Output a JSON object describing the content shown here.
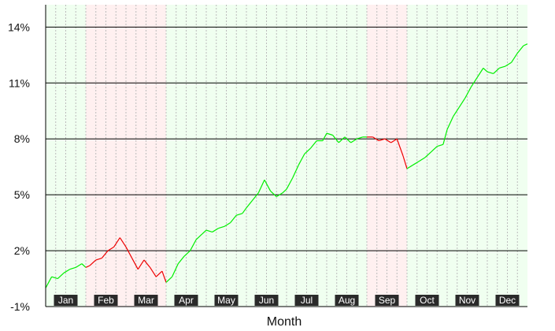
{
  "chart_data": {
    "type": "line",
    "xlabel": "Month",
    "ylabel": "",
    "title": "",
    "ylim": [
      -1,
      15.2
    ],
    "yticks": [
      "-1%",
      "2%",
      "5%",
      "8%",
      "11%",
      "14%"
    ],
    "ytick_values": [
      -1,
      2,
      5,
      8,
      11,
      14
    ],
    "grid": "horizontal solid lines at y ticks; vertical dotted lines at weeks",
    "months": [
      {
        "label": "Jan",
        "status": "up"
      },
      {
        "label": "Feb",
        "status": "down"
      },
      {
        "label": "Mar",
        "status": "down"
      },
      {
        "label": "Apr",
        "status": "up"
      },
      {
        "label": "May",
        "status": "up"
      },
      {
        "label": "Jun",
        "status": "up"
      },
      {
        "label": "Jul",
        "status": "up"
      },
      {
        "label": "Aug",
        "status": "up"
      },
      {
        "label": "Sep",
        "status": "down"
      },
      {
        "label": "Oct",
        "status": "up"
      },
      {
        "label": "Nov",
        "status": "up"
      },
      {
        "label": "Dec",
        "status": "up"
      }
    ],
    "series": [
      {
        "values": [
          [
            0.0,
            0.0
          ],
          [
            0.15,
            0.6
          ],
          [
            0.3,
            0.5
          ],
          [
            0.45,
            0.8
          ],
          [
            0.6,
            1.0
          ],
          [
            0.75,
            1.1
          ],
          [
            0.9,
            1.3
          ],
          [
            1.0,
            1.1
          ],
          [
            1.1,
            1.2
          ],
          [
            1.25,
            1.5
          ],
          [
            1.4,
            1.6
          ],
          [
            1.55,
            2.0
          ],
          [
            1.7,
            2.2
          ],
          [
            1.85,
            2.7
          ],
          [
            2.0,
            2.2
          ],
          [
            2.15,
            1.6
          ],
          [
            2.3,
            1.0
          ],
          [
            2.45,
            1.5
          ],
          [
            2.6,
            1.1
          ],
          [
            2.75,
            0.6
          ],
          [
            2.9,
            0.9
          ],
          [
            3.0,
            0.3
          ],
          [
            3.15,
            0.6
          ],
          [
            3.3,
            1.3
          ],
          [
            3.45,
            1.7
          ],
          [
            3.6,
            2.0
          ],
          [
            3.75,
            2.6
          ],
          [
            3.9,
            2.9
          ],
          [
            4.0,
            3.1
          ],
          [
            4.15,
            3.0
          ],
          [
            4.3,
            3.2
          ],
          [
            4.45,
            3.3
          ],
          [
            4.6,
            3.5
          ],
          [
            4.75,
            3.9
          ],
          [
            4.9,
            4.0
          ],
          [
            5.0,
            4.3
          ],
          [
            5.15,
            4.7
          ],
          [
            5.3,
            5.1
          ],
          [
            5.45,
            5.8
          ],
          [
            5.6,
            5.2
          ],
          [
            5.75,
            4.9
          ],
          [
            5.9,
            5.1
          ],
          [
            6.0,
            5.3
          ],
          [
            6.15,
            5.9
          ],
          [
            6.3,
            6.6
          ],
          [
            6.45,
            7.2
          ],
          [
            6.6,
            7.5
          ],
          [
            6.75,
            7.9
          ],
          [
            6.9,
            7.9
          ],
          [
            7.0,
            8.3
          ],
          [
            7.15,
            8.2
          ],
          [
            7.3,
            7.8
          ],
          [
            7.45,
            8.1
          ],
          [
            7.6,
            7.8
          ],
          [
            7.75,
            8.0
          ],
          [
            7.9,
            8.1
          ],
          [
            8.0,
            8.1
          ],
          [
            8.15,
            8.1
          ],
          [
            8.3,
            7.9
          ],
          [
            8.45,
            8.0
          ],
          [
            8.6,
            7.8
          ],
          [
            8.75,
            8.0
          ],
          [
            8.9,
            7.1
          ],
          [
            9.0,
            6.4
          ],
          [
            9.15,
            6.6
          ],
          [
            9.3,
            6.8
          ],
          [
            9.45,
            7.0
          ],
          [
            9.6,
            7.3
          ],
          [
            9.75,
            7.6
          ],
          [
            9.9,
            7.7
          ],
          [
            10.0,
            8.5
          ],
          [
            10.15,
            9.2
          ],
          [
            10.3,
            9.7
          ],
          [
            10.45,
            10.2
          ],
          [
            10.6,
            10.8
          ],
          [
            10.75,
            11.3
          ],
          [
            10.9,
            11.8
          ],
          [
            11.0,
            11.6
          ],
          [
            11.15,
            11.5
          ],
          [
            11.3,
            11.8
          ],
          [
            11.45,
            11.9
          ],
          [
            11.6,
            12.1
          ],
          [
            11.75,
            12.6
          ],
          [
            11.9,
            13.0
          ],
          [
            12.0,
            13.1
          ]
        ]
      }
    ]
  }
}
